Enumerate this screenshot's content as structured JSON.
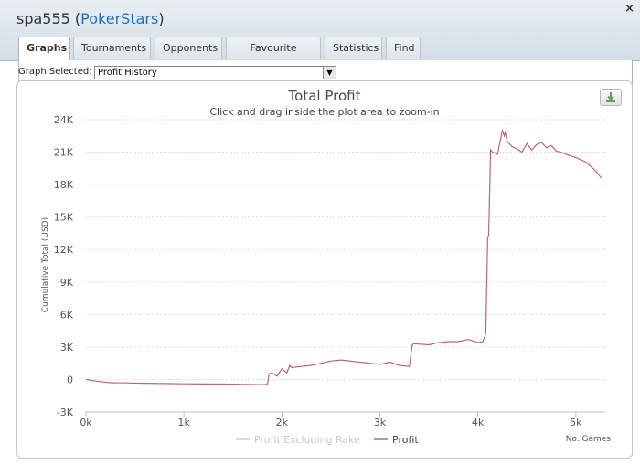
{
  "window": {
    "title_user": "spa555",
    "title_site": "PokerStars",
    "close_glyph": "×"
  },
  "tabs": [
    {
      "label": "Graphs",
      "active": true
    },
    {
      "label": "Tournaments"
    },
    {
      "label": "Opponents"
    },
    {
      "label": "Favourite Games"
    },
    {
      "label": "Statistics"
    },
    {
      "label": "Find"
    }
  ],
  "graph_select": {
    "label": "Graph Selected:",
    "value": "Profit History"
  },
  "download_icon": "download-icon",
  "colors": {
    "profit_line": "#b86a6a",
    "excl_rake_line": "#cfcfcf",
    "title_site": "#1f6fbf"
  },
  "chart_data": {
    "type": "line",
    "title": "Total Profit",
    "subtitle": "Click and drag inside the plot area to zoom-in",
    "ylabel": "Cumulative Total (USD)",
    "xlabel": "No. Games",
    "ylim": [
      -3000,
      24000
    ],
    "xlim": [
      0,
      5300
    ],
    "y_ticks": [
      -3000,
      0,
      3000,
      6000,
      9000,
      12000,
      15000,
      18000,
      21000,
      24000
    ],
    "y_tick_labels": [
      "-3K",
      "0",
      "3K",
      "6K",
      "9K",
      "12K",
      "15K",
      "18K",
      "21K",
      "24K"
    ],
    "x_ticks": [
      0,
      1000,
      2000,
      3000,
      4000,
      5000
    ],
    "x_tick_labels": [
      "0k",
      "1k",
      "2k",
      "3k",
      "4k",
      "5k"
    ],
    "grid": "horizontal-dotted",
    "legend_position": "bottom",
    "series": [
      {
        "name": "Profit Excluding Rake",
        "values": []
      },
      {
        "name": "Profit",
        "x": [
          0,
          100,
          250,
          400,
          600,
          800,
          1000,
          1200,
          1400,
          1600,
          1800,
          1850,
          1870,
          1900,
          1950,
          2000,
          2050,
          2080,
          2100,
          2200,
          2300,
          2400,
          2500,
          2600,
          2700,
          2800,
          2900,
          3000,
          3100,
          3200,
          3300,
          3330,
          3350,
          3500,
          3600,
          3700,
          3800,
          3900,
          4000,
          4050,
          4080,
          4100,
          4110,
          4130,
          4150,
          4200,
          4250,
          4270,
          4280,
          4300,
          4350,
          4400,
          4450,
          4500,
          4550,
          4600,
          4650,
          4700,
          4750,
          4800,
          4850,
          4900,
          5000,
          5100,
          5150,
          5200,
          5260
        ],
        "values": [
          0,
          -150,
          -300,
          -320,
          -350,
          -380,
          -400,
          -420,
          -430,
          -450,
          -480,
          -450,
          500,
          600,
          300,
          1000,
          600,
          1300,
          1100,
          1200,
          1300,
          1500,
          1700,
          1800,
          1700,
          1600,
          1500,
          1400,
          1600,
          1300,
          1200,
          3200,
          3300,
          3200,
          3400,
          3500,
          3500,
          3700,
          3400,
          3500,
          4200,
          13100,
          13300,
          21200,
          21000,
          20800,
          23000,
          22500,
          22800,
          22000,
          21500,
          21300,
          21000,
          21800,
          21200,
          21700,
          21900,
          21400,
          21600,
          21100,
          21000,
          20800,
          20500,
          20100,
          19700,
          19300,
          18600
        ]
      }
    ]
  }
}
